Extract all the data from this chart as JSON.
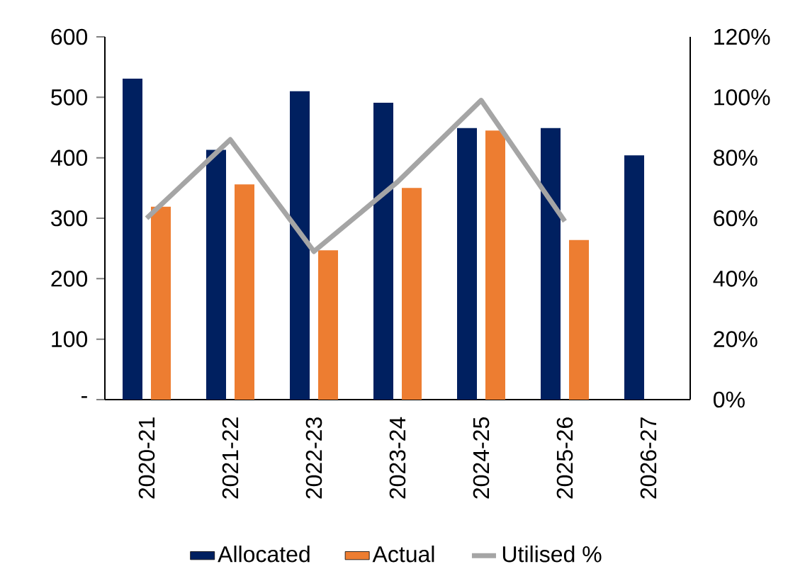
{
  "chart_data": {
    "type": "bar",
    "categories": [
      "2020-21",
      "2021-22",
      "2022-23",
      "2023-24",
      "2024-25",
      "2025-26",
      "2026-27"
    ],
    "series": [
      {
        "name": "Allocated",
        "color": "#002060",
        "values": [
          531,
          413,
          510,
          491,
          449,
          449,
          404
        ]
      },
      {
        "name": "Actual",
        "color": "#ed7d31",
        "values": [
          319,
          356,
          247,
          350,
          445,
          264,
          null
        ]
      },
      {
        "name": "Utilised %",
        "type": "line",
        "axis": "y2",
        "color": "#a5a5a5",
        "values": [
          60,
          86,
          49,
          72,
          99,
          59,
          null
        ]
      }
    ],
    "ylim": [
      0,
      600
    ],
    "yticks": [
      {
        "value": 0,
        "label": "-"
      },
      100,
      200,
      300,
      400,
      500,
      600
    ],
    "y2lim": [
      0,
      120
    ],
    "y2ticks": [
      {
        "value": 0,
        "label": "0%"
      },
      {
        "value": 20,
        "label": "20%"
      },
      {
        "value": 40,
        "label": "40%"
      },
      {
        "value": 60,
        "label": "60%"
      },
      {
        "value": 80,
        "label": "80%"
      },
      {
        "value": 100,
        "label": "100%"
      },
      {
        "value": 120,
        "label": "120%"
      }
    ],
    "grid": false,
    "legend": "bottom",
    "marker": "none",
    "line_style": "solid"
  }
}
